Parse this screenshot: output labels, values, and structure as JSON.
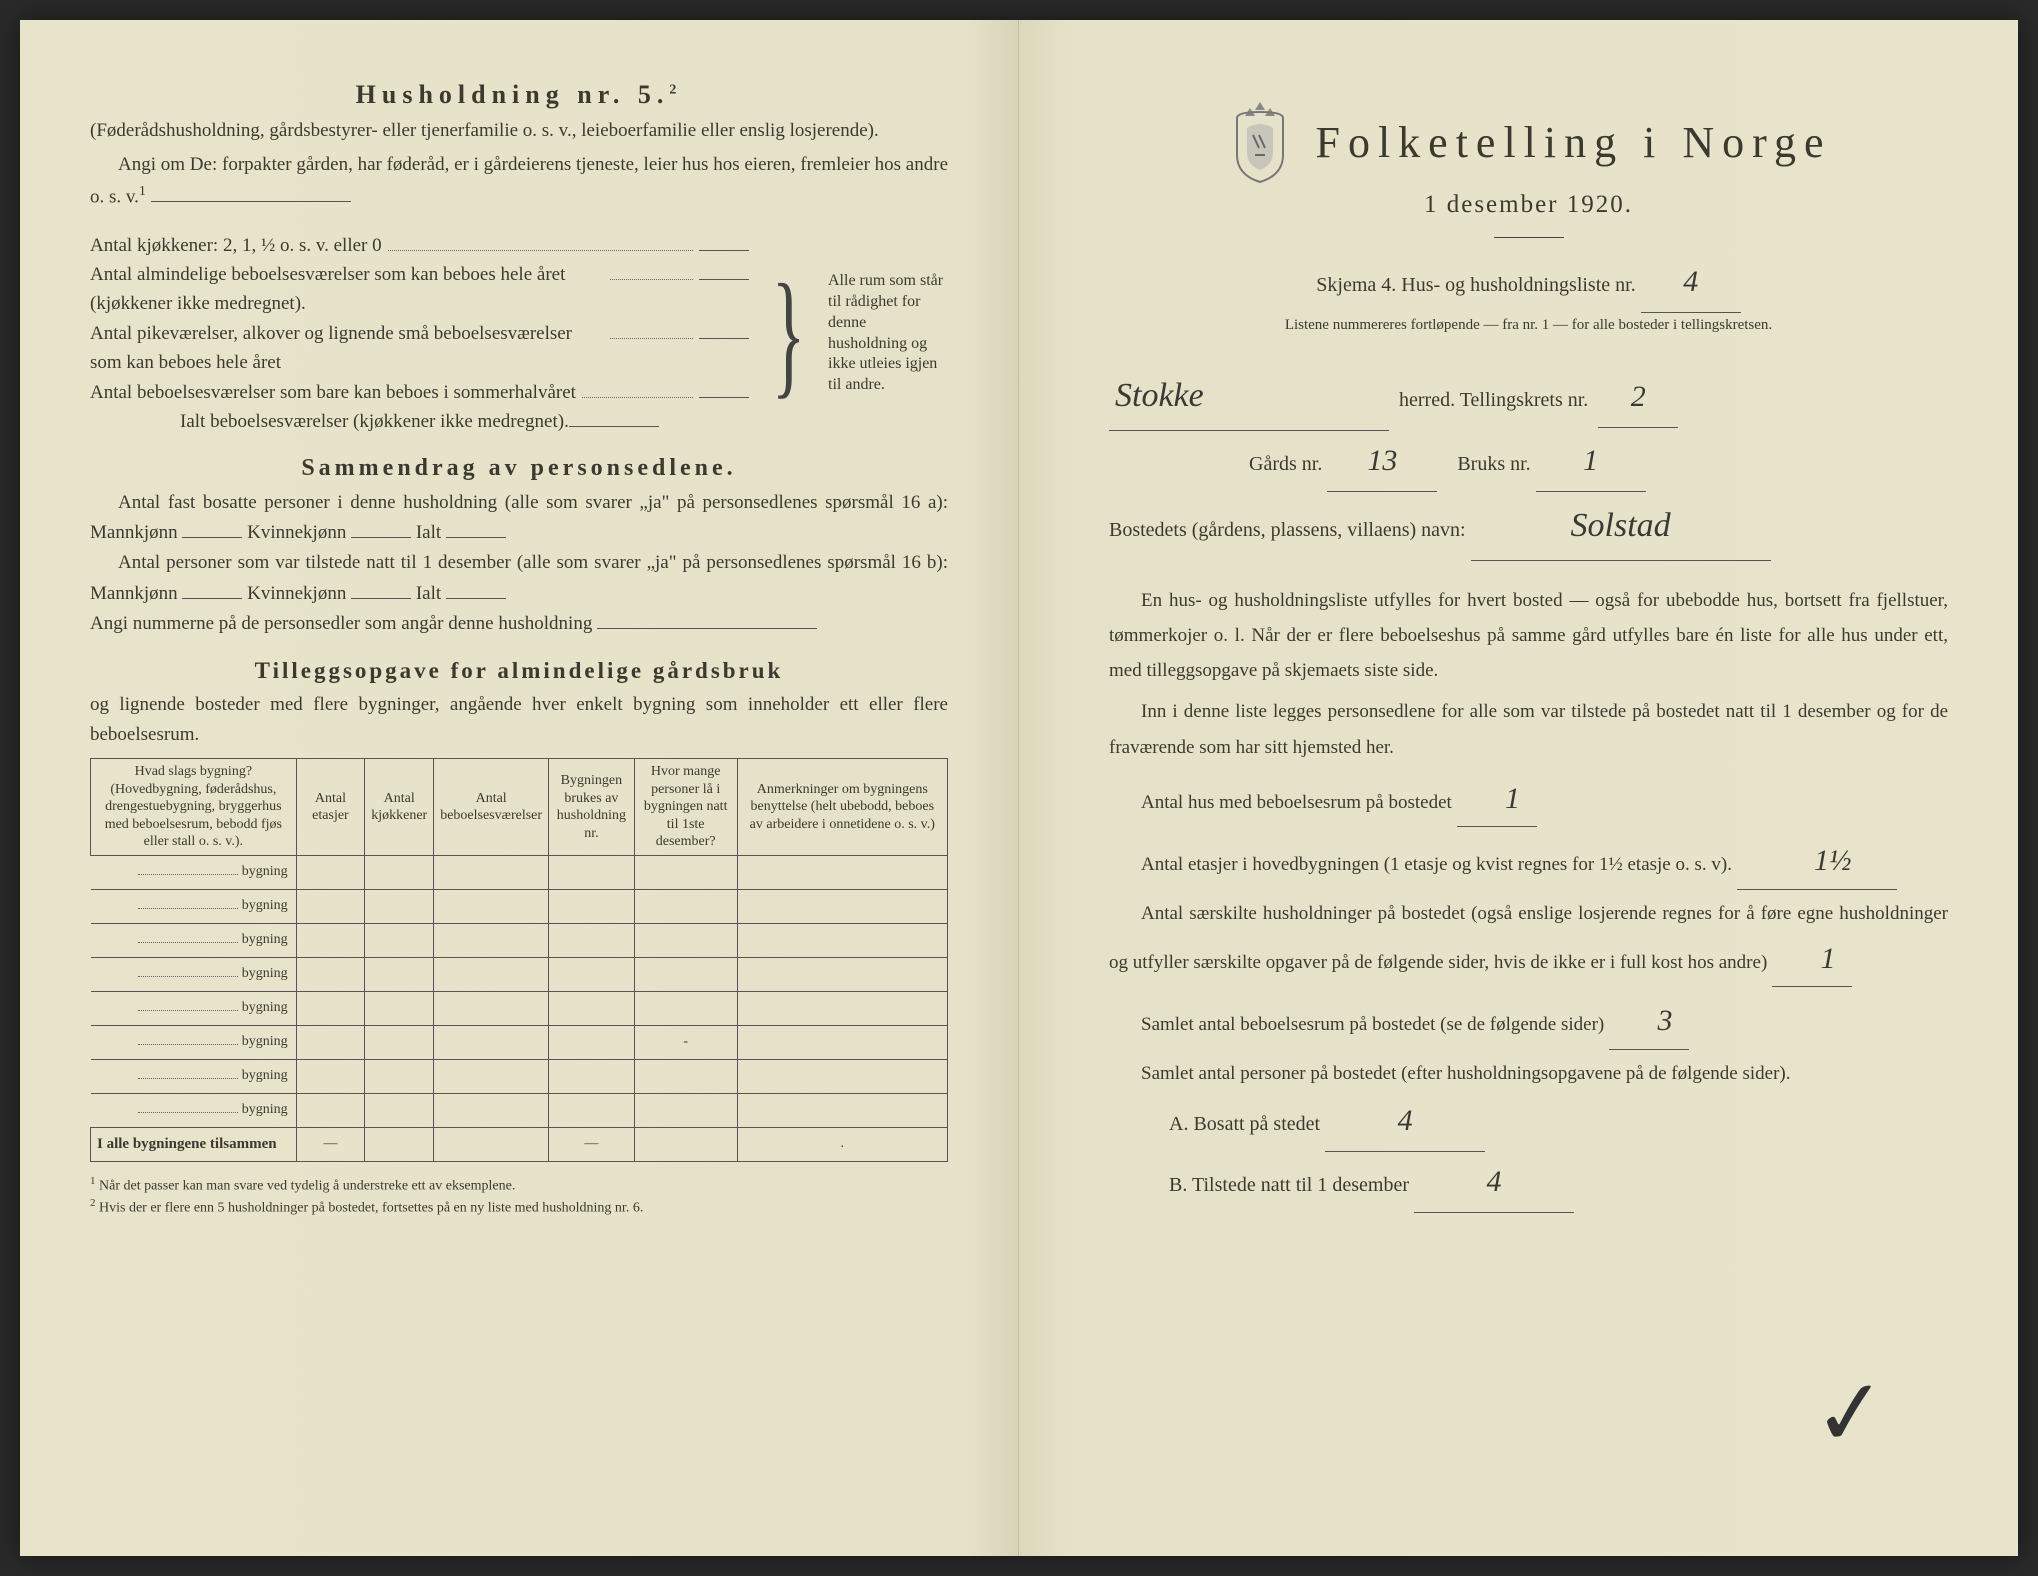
{
  "left": {
    "household_title": "Husholdning nr. 5.",
    "household_sup": "2",
    "household_sub": "(Føderådshusholdning, gårdsbestyrer- eller tjenerfamilie o. s. v., leieboerfamilie eller enslig losjerende).",
    "angi_om": "Angi om De: forpakter gården, har føderåd, er i gårdeierens tjeneste, leier hus hos eieren, fremleier hos andre o. s. v.",
    "angi_sup": "1",
    "kitchens": "Antal kjøkkener: 2, 1, ½ o. s. v. eller 0",
    "rooms_year": "Antal almindelige beboelsesværelser som kan beboes hele året (kjøkkener ikke medregnet).",
    "rooms_maid": "Antal pikeværelser, alkover og lignende små beboelsesværelser som kan beboes hele året",
    "rooms_summer": "Antal beboelsesværelser som bare kan beboes i sommerhalvåret",
    "rooms_total": "Ialt beboelsesværelser (kjøkkener ikke medregnet).",
    "brace_text": "Alle rum som står til rådighet for denne husholdning og ikke utleies igjen til andre.",
    "summary_title": "Sammendrag av personsedlene.",
    "summary_l1a": "Antal fast bosatte personer i denne husholdning (alle som svarer „ja\" på personsedlenes spørsmål 16 a): Mannkjønn",
    "summary_kvinne": "Kvinnekjønn",
    "summary_ialt": "Ialt",
    "summary_l2a": "Antal personer som var tilstede natt til 1 desember (alle som svarer „ja\" på personsedlenes spørsmål 16 b): Mannkjønn",
    "summary_l3": "Angi nummerne på de personsedler som angår denne husholdning",
    "tillegg_title": "Tilleggsopgave for almindelige gårdsbruk",
    "tillegg_sub": "og lignende bosteder med flere bygninger, angående hver enkelt bygning som inneholder ett eller flere beboelsesrum.",
    "table_headers": [
      "Hvad slags bygning?\n(Hovedbygning, føderådshus, drengestuebygning, bryggerhus med beboelsesrum, bebodd fjøs eller stall o. s. v.).",
      "Antal etasjer",
      "Antal kjøkkener",
      "Antal beboelsesværelser",
      "Bygningen brukes av husholdning nr.",
      "Hvor mange personer lå i bygningen natt til 1ste desember?",
      "Anmerkninger om bygningens benyttelse (helt ubebodd, beboes av arbeidere i onnetidene o. s. v.)"
    ],
    "bygning_label": "bygning",
    "table_footer": "I alle bygningene tilsammen",
    "footnote1": "Når det passer kan man svare ved tydelig å understreke ett av eksemplene.",
    "footnote2": "Hvis der er flere enn 5 husholdninger på bostedet, fortsettes på en ny liste med husholdning nr. 6."
  },
  "right": {
    "title": "Folketelling i Norge",
    "date": "1 desember 1920.",
    "skjema": "Skjema 4. Hus- og husholdningsliste nr.",
    "skjema_nr": "4",
    "liste_note": "Listene nummereres fortløpende — fra nr. 1 — for alle bosteder i tellingskretsen.",
    "herred_value": "Stokke",
    "herred_label": "herred.  Tellingskrets nr.",
    "krets_nr": "2",
    "gards_label": "Gårds nr.",
    "gards_nr": "13",
    "bruks_label": "Bruks nr.",
    "bruks_nr": "1",
    "bosted_label": "Bostedets (gårdens, plassens, villaens) navn:",
    "bosted_value": "Solstad",
    "p1": "En hus- og husholdningsliste utfylles for hvert bosted — også for ubebodde hus, bortsett fra fjellstuer, tømmerkojer o. l. Når der er flere beboelseshus på samme gård utfylles bare én liste for alle hus under ett, med tilleggsopgave på skjemaets siste side.",
    "p2": "Inn i denne liste legges personsedlene for alle som var tilstede på bostedet natt til 1 desember og for de fraværende som har sitt hjemsted her.",
    "q1": "Antal hus med beboelsesrum på bostedet",
    "q1_val": "1",
    "q2a": "Antal etasjer i hovedbygningen (1 etasje og kvist regnes for 1½ etasje o. s. v).",
    "q2_val": "1½",
    "q3a": "Antal særskilte husholdninger på bostedet (også enslige losjerende regnes for å føre egne husholdninger og utfyller særskilte opgaver på de følgende sider, hvis de ikke er i full kost hos andre)",
    "q3_val": "1",
    "q4": "Samlet antal beboelsesrum på bostedet (se de følgende sider)",
    "q4_val": "3",
    "q5": "Samlet antal personer på bostedet (efter husholdningsopgavene på de følgende sider).",
    "qA": "A. Bosatt på stedet",
    "qA_val": "4",
    "qB": "B. Tilstede natt til 1 desember",
    "qB_val": "4"
  },
  "colors": {
    "paper": "#e8e4cc",
    "ink": "#3a3a2f",
    "handwriting": "#3a3a35"
  }
}
